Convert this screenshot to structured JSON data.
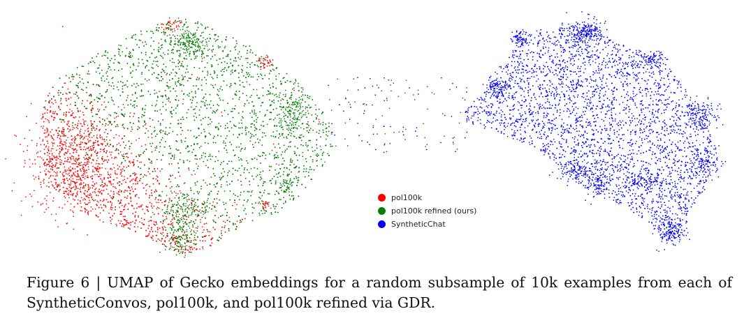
{
  "figure": {
    "caption": "Figure 6 | UMAP of Gecko embeddings for a random subsample of 10k examples from each of SyntheticConvos, pol100k, and pol100k refined via GDR."
  },
  "chart_data": {
    "type": "scatter",
    "title": "",
    "xlabel": "",
    "ylabel": "",
    "grid": false,
    "axes_visible": false,
    "legend_placement": "center",
    "points_per_series": 10000,
    "series": [
      {
        "name": "pol100k",
        "color": "#ff0000"
      },
      {
        "name": "pol100k refined (ours)",
        "color": "#008000"
      },
      {
        "name": "SyntheticChat",
        "color": "#0000ff"
      }
    ]
  }
}
